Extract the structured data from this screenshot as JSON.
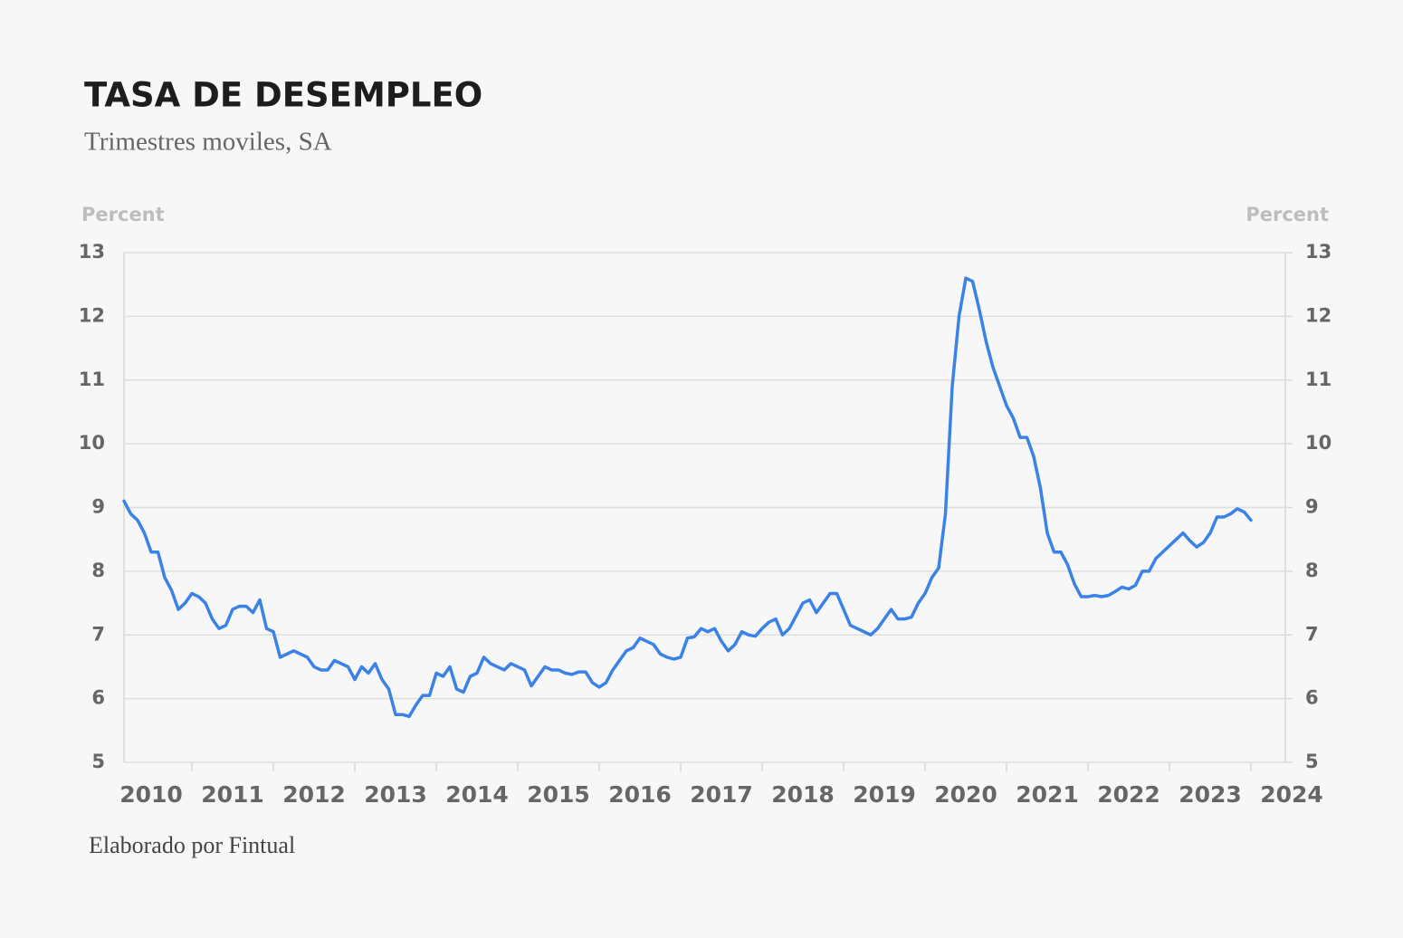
{
  "chart_data": {
    "type": "line",
    "title": "TASA DE DESEMPLEO",
    "subtitle": "Trimestres moviles, SA",
    "y_label": "Percent",
    "y2_label": "Percent",
    "source": "Elaborado por Fintual",
    "color": "#3b82e6",
    "grid": true,
    "ylim": [
      5,
      13
    ],
    "yticks": [
      5,
      6,
      7,
      8,
      9,
      10,
      11,
      12,
      13
    ],
    "y2lim": [
      5,
      13
    ],
    "y2ticks": [
      5,
      6,
      7,
      8,
      9,
      10,
      11,
      12,
      13
    ],
    "categories": [
      null,
      null,
      null,
      null,
      "2010",
      null,
      null,
      null,
      null,
      null,
      null,
      null,
      null,
      null,
      null,
      null,
      "2011",
      null,
      null,
      null,
      null,
      null,
      null,
      null,
      null,
      null,
      null,
      null,
      "2012",
      null,
      null,
      null,
      null,
      null,
      null,
      null,
      null,
      null,
      null,
      null,
      "2013",
      null,
      null,
      null,
      null,
      null,
      null,
      null,
      null,
      null,
      null,
      null,
      "2014",
      null,
      null,
      null,
      null,
      null,
      null,
      null,
      null,
      null,
      null,
      null,
      "2015",
      null,
      null,
      null,
      null,
      null,
      null,
      null,
      null,
      null,
      null,
      null,
      "2016",
      null,
      null,
      null,
      null,
      null,
      null,
      null,
      null,
      null,
      null,
      null,
      "2017",
      null,
      null,
      null,
      null,
      null,
      null,
      null,
      null,
      null,
      null,
      null,
      "2018",
      null,
      null,
      null,
      null,
      null,
      null,
      null,
      null,
      null,
      null,
      null,
      "2019",
      null,
      null,
      null,
      null,
      null,
      null,
      null,
      null,
      null,
      null,
      null,
      "2020",
      null,
      null,
      null,
      null,
      null,
      null,
      null,
      null,
      null,
      null,
      null,
      "2021",
      null,
      null,
      null,
      null,
      null,
      null,
      null,
      null,
      null,
      null,
      null,
      "2022",
      null,
      null,
      null,
      null,
      null,
      null,
      null,
      null,
      null,
      null,
      null,
      "2023",
      null,
      null,
      null,
      null,
      null,
      null,
      null,
      null,
      null,
      null,
      null,
      "2024"
    ],
    "values": [
      9.1,
      8.9,
      8.8,
      8.6,
      8.3,
      8.3,
      7.9,
      7.7,
      7.4,
      7.5,
      7.65,
      7.6,
      7.5,
      7.25,
      7.1,
      7.15,
      7.4,
      7.45,
      7.45,
      7.35,
      7.55,
      7.1,
      7.05,
      6.65,
      6.7,
      6.75,
      6.7,
      6.65,
      6.5,
      6.45,
      6.45,
      6.6,
      6.55,
      6.5,
      6.3,
      6.5,
      6.4,
      6.55,
      6.3,
      6.15,
      5.75,
      5.75,
      5.72,
      5.9,
      6.05,
      6.05,
      6.4,
      6.35,
      6.5,
      6.15,
      6.1,
      6.35,
      6.4,
      6.65,
      6.55,
      6.5,
      6.45,
      6.55,
      6.5,
      6.45,
      6.2,
      6.35,
      6.5,
      6.45,
      6.45,
      6.4,
      6.38,
      6.42,
      6.42,
      6.25,
      6.18,
      6.25,
      6.45,
      6.6,
      6.75,
      6.8,
      6.95,
      6.9,
      6.85,
      6.7,
      6.65,
      6.62,
      6.65,
      6.95,
      6.97,
      7.1,
      7.05,
      7.1,
      6.9,
      6.75,
      6.85,
      7.05,
      7.0,
      6.98,
      7.1,
      7.2,
      7.25,
      7.0,
      7.1,
      7.3,
      7.5,
      7.55,
      7.35,
      7.5,
      7.65,
      7.65,
      7.4,
      7.15,
      7.1,
      7.05,
      7.0,
      7.1,
      7.25,
      7.4,
      7.25,
      7.25,
      7.28,
      7.5,
      7.65,
      7.9,
      8.05,
      8.9,
      10.9,
      12.0,
      12.6,
      12.55,
      12.1,
      11.6,
      11.2,
      10.9,
      10.6,
      10.4,
      10.1,
      10.1,
      9.8,
      9.3,
      8.6,
      8.3,
      8.3,
      8.1,
      7.8,
      7.6,
      7.6,
      7.62,
      7.6,
      7.62,
      7.68,
      7.75,
      7.72,
      7.78,
      8.0,
      8.0,
      8.2,
      8.3,
      8.4,
      8.5,
      8.6,
      8.48,
      8.38,
      8.45,
      8.6,
      8.85,
      8.85,
      8.9,
      8.98,
      8.93,
      8.8,
      null,
      null,
      null,
      null,
      null,
      null
    ]
  }
}
